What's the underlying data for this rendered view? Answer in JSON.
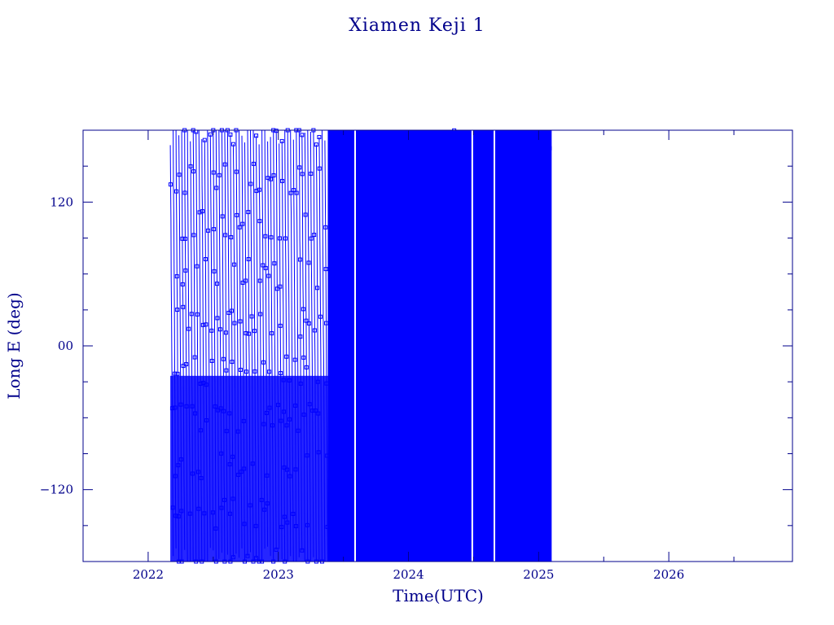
{
  "chart_data": {
    "type": "line",
    "title": "Xiamen Keji 1",
    "xlabel": "Time(UTC)",
    "ylabel": "Long E (deg)",
    "xlim": [
      2021.5,
      2026.95
    ],
    "ylim": [
      -180,
      180
    ],
    "x_ticks": [
      2022,
      2023,
      2024,
      2025,
      2026
    ],
    "x_tick_labels": [
      "2022",
      "2023",
      "2024",
      "2025",
      "2026"
    ],
    "y_ticks": [
      -120,
      0,
      120
    ],
    "y_tick_labels": [
      "−120",
      "00",
      "120"
    ],
    "grid": false,
    "series": [
      {
        "color": "#0000ff",
        "marker": "square",
        "segments": [
          {
            "x_start": 2022.17,
            "x_end": 2023.38,
            "pattern": "sparse-wrapping",
            "cycles": 55,
            "y_min": -180,
            "y_max": 180
          },
          {
            "x_start": 2023.38,
            "x_end": 2025.1,
            "pattern": "dense-fill",
            "y_min": -180,
            "y_max": 180
          }
        ],
        "gaps": [
          2023.59,
          2024.49,
          2024.66
        ]
      }
    ],
    "colors": {
      "axis": "#00008b",
      "data": "#0000ff",
      "background": "#ffffff"
    }
  }
}
